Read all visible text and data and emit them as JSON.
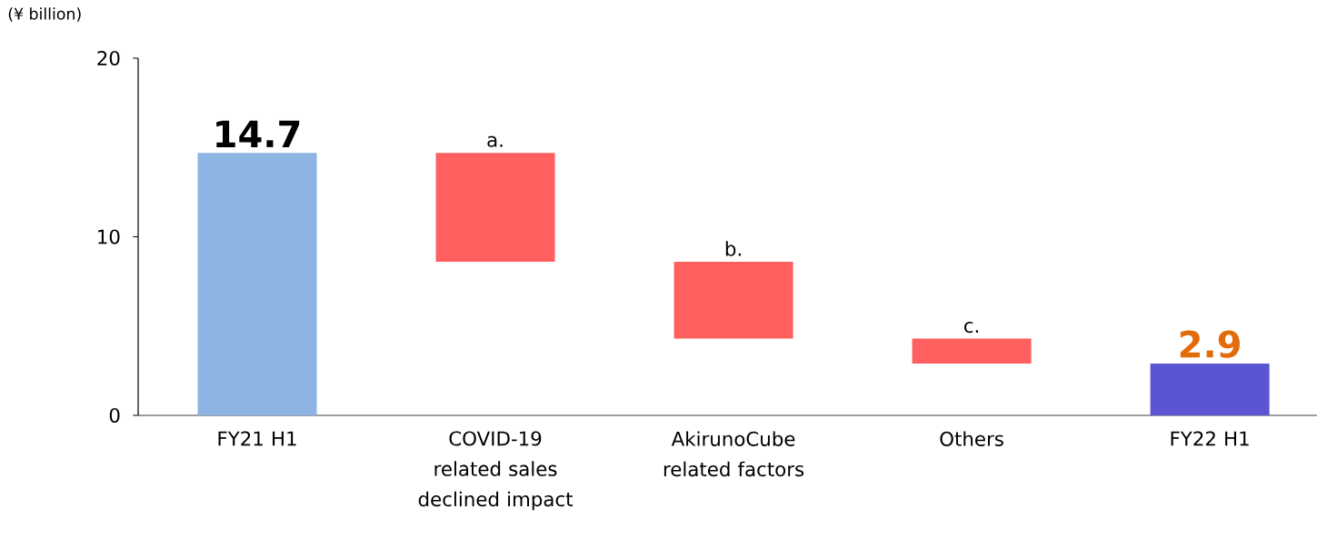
{
  "chart_data": {
    "type": "bar",
    "ylabel": "(¥ billion)",
    "categories": [
      "FY21 H1",
      "COVID-19 related sales declined impact",
      "AkirunoCube related factors",
      "Others",
      "FY22 H1"
    ],
    "values": [
      14.7,
      -6.1,
      -4.3,
      -1.4,
      2.9
    ],
    "base": [
      0,
      14.7,
      8.6,
      4.3,
      0
    ],
    "colors": [
      "#8eb4e3",
      "#ff5f5f",
      "#ff5f5f",
      "#ff5f5f",
      "#5a55d2"
    ],
    "value_labels": [
      "14.7",
      "a.",
      "b.",
      "c.",
      "2.9"
    ],
    "ylim": [
      0,
      20
    ],
    "yticks": [
      0,
      10,
      20
    ],
    "grid": false
  }
}
